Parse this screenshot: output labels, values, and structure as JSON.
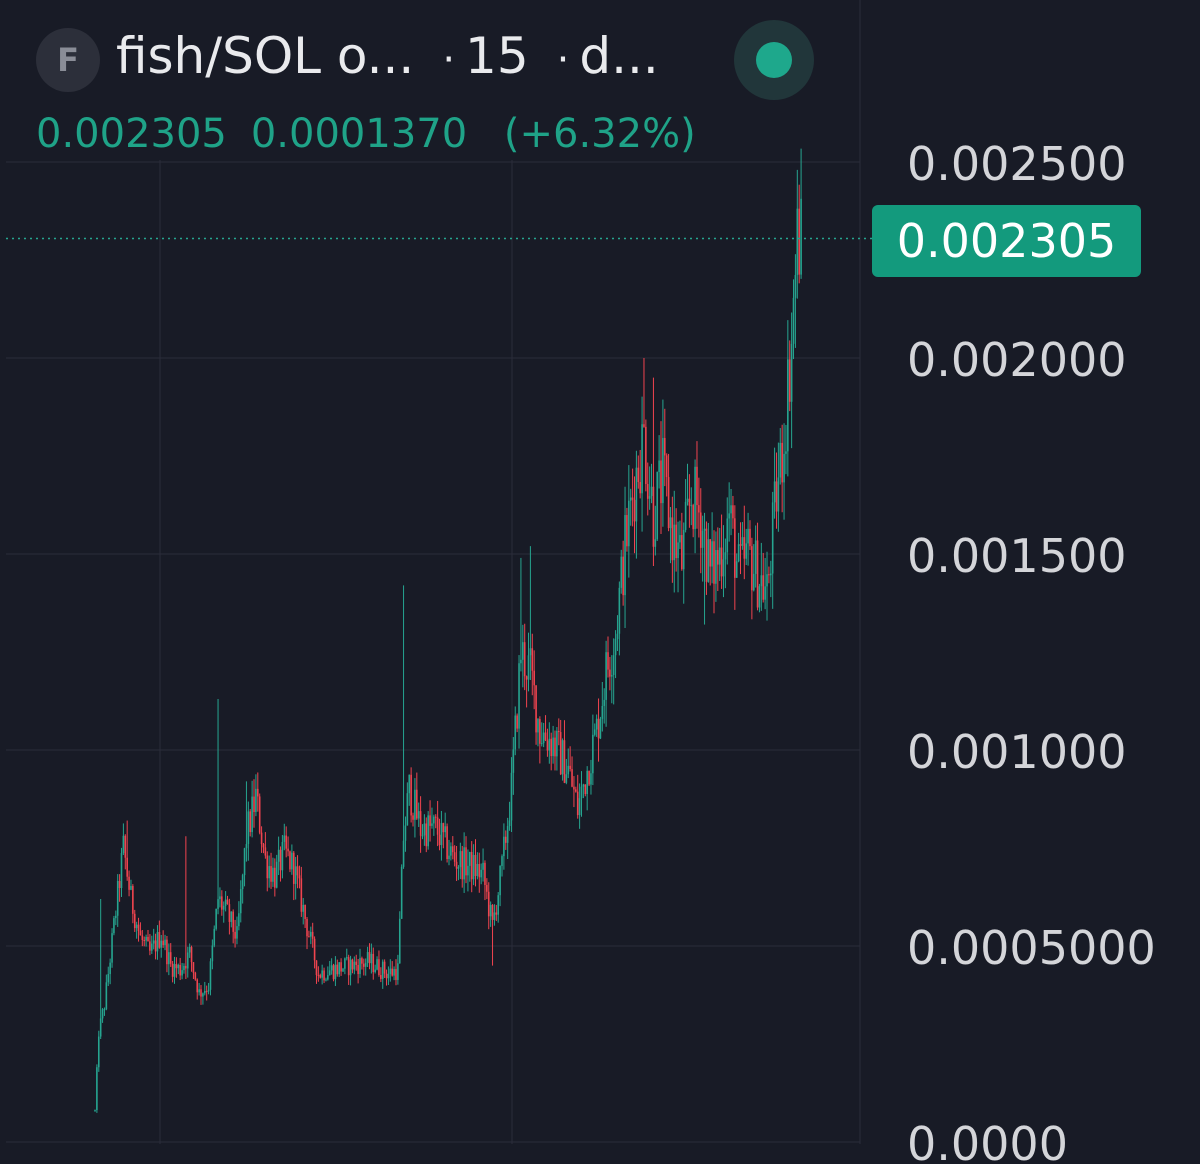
{
  "header": {
    "avatar_letter": "F",
    "pair": "fish/SOL o...",
    "interval": "15",
    "exchange": "d...",
    "separator": "·",
    "live_color": "#1ea88c"
  },
  "quote": {
    "price": "0.002305",
    "change": "0.0001370",
    "change_pct": "(+6.32%)",
    "color": "#1fa388"
  },
  "price_badge": "0.002305",
  "colors": {
    "up": "#26a590",
    "down": "#f0444f",
    "background": "#181b26",
    "grid": "#2a2d3a"
  },
  "chart_data": {
    "type": "candlestick",
    "y_ticks": [
      "0.0000",
      "0.0005000",
      "0.001000",
      "0.001500",
      "0.002000",
      "0.002500"
    ],
    "y_tick_values": [
      0,
      0.0005,
      0.001,
      0.0015,
      0.002,
      0.0025
    ],
    "ylim": [
      0,
      0.0025
    ],
    "current_price": 0.002305,
    "grid": true,
    "close_trace": [
      [
        0,
        8e-05
      ],
      [
        2,
        0.00028
      ],
      [
        5,
        0.00035
      ],
      [
        10,
        0.00055
      ],
      [
        15,
        0.00075
      ],
      [
        19,
        0.00062
      ],
      [
        24,
        0.00052
      ],
      [
        29,
        0.00048
      ],
      [
        35,
        0.00053
      ],
      [
        40,
        0.00045
      ],
      [
        45,
        0.00044
      ],
      [
        50,
        0.00048
      ],
      [
        55,
        0.00038
      ],
      [
        60,
        0.0004
      ],
      [
        65,
        0.00062
      ],
      [
        70,
        0.00058
      ],
      [
        75,
        0.00052
      ],
      [
        80,
        0.00078
      ],
      [
        85,
        0.00088
      ],
      [
        90,
        0.00072
      ],
      [
        95,
        0.00068
      ],
      [
        100,
        0.00074
      ],
      [
        105,
        0.0007
      ],
      [
        112,
        0.00055
      ],
      [
        118,
        0.00043
      ],
      [
        125,
        0.00044
      ],
      [
        135,
        0.00045
      ],
      [
        145,
        0.00046
      ],
      [
        155,
        0.00043
      ],
      [
        160,
        0.00044
      ],
      [
        163,
        0.00078
      ],
      [
        166,
        0.0009
      ],
      [
        172,
        0.0008
      ],
      [
        180,
        0.0008
      ],
      [
        190,
        0.00072
      ],
      [
        200,
        0.0007
      ],
      [
        205,
        0.00068
      ],
      [
        210,
        0.00055
      ],
      [
        215,
        0.0007
      ],
      [
        220,
        0.0009
      ],
      [
        225,
        0.00125
      ],
      [
        230,
        0.0012
      ],
      [
        235,
        0.00105
      ],
      [
        242,
        0.00102
      ],
      [
        250,
        0.00095
      ],
      [
        255,
        0.00085
      ],
      [
        260,
        0.00095
      ],
      [
        265,
        0.00105
      ],
      [
        270,
        0.0012
      ],
      [
        275,
        0.0013
      ],
      [
        280,
        0.00152
      ],
      [
        285,
        0.00168
      ],
      [
        290,
        0.0018
      ],
      [
        295,
        0.0016
      ],
      [
        300,
        0.0017
      ],
      [
        305,
        0.00155
      ],
      [
        310,
        0.00148
      ],
      [
        315,
        0.00165
      ],
      [
        320,
        0.0016
      ],
      [
        325,
        0.00145
      ],
      [
        330,
        0.0015
      ],
      [
        335,
        0.0016
      ],
      [
        340,
        0.00145
      ],
      [
        345,
        0.0015
      ],
      [
        350,
        0.00145
      ],
      [
        355,
        0.0014
      ],
      [
        360,
        0.00165
      ],
      [
        364,
        0.0018
      ],
      [
        368,
        0.00205
      ],
      [
        371,
        0.0023
      ],
      [
        373,
        0.002305
      ]
    ],
    "spikes": [
      [
        3,
        0.00062
      ],
      [
        17,
        0.00082
      ],
      [
        48,
        0.00078
      ],
      [
        65,
        0.00113
      ],
      [
        80,
        0.00092
      ],
      [
        163,
        0.00142
      ],
      [
        210,
        0.00045
      ],
      [
        225,
        0.00149
      ],
      [
        230,
        0.00152
      ],
      [
        290,
        0.002
      ],
      [
        295,
        0.00195
      ],
      [
        322,
        0.00132
      ],
      [
        355,
        0.00133
      ],
      [
        371,
        0.00248
      ],
      [
        373,
        0.0024
      ]
    ]
  }
}
